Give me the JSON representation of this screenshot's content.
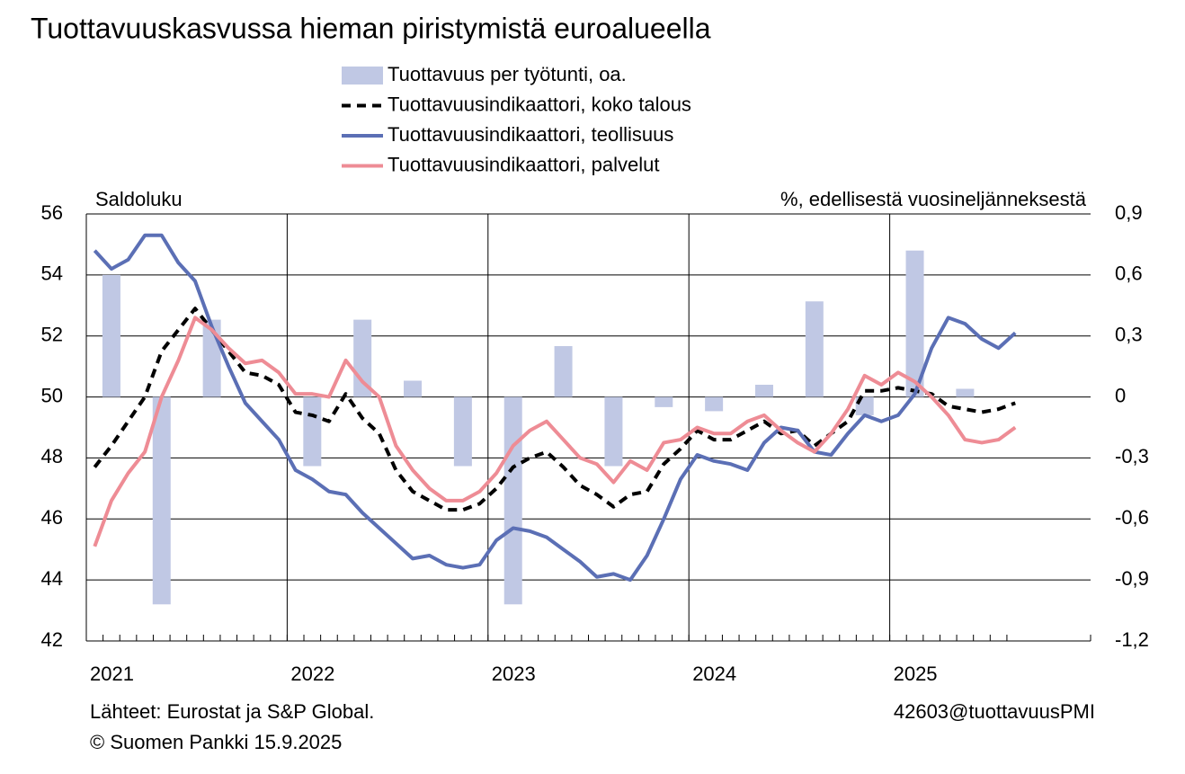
{
  "chart_data": {
    "type": "combo",
    "title": "Tuottavuuskasvussa hieman piristymistä euroalueella",
    "y_label": "Saldoluku",
    "y2_label": "%, edellisestä vuosineljänneksestä",
    "source": "Lähteet: Eurostat ja S&P Global.",
    "copyright": "© Suomen Pankki 15.9.2025",
    "chart_id": "42603@tuottavuusPMI",
    "legend": "top",
    "grid": true,
    "categories": [
      "2021",
      null,
      null,
      null,
      null,
      null,
      null,
      null,
      null,
      null,
      null,
      null,
      "2022",
      null,
      null,
      null,
      null,
      null,
      null,
      null,
      null,
      null,
      null,
      null,
      "2023",
      null,
      null,
      null,
      null,
      null,
      null,
      null,
      null,
      null,
      null,
      null,
      "2024",
      null,
      null,
      null,
      null,
      null,
      null,
      null,
      null,
      null,
      null,
      null,
      "2025",
      null,
      null,
      null,
      null,
      null,
      null,
      null
    ],
    "ylim": [
      42,
      56
    ],
    "yticks": [
      42,
      44,
      46,
      48,
      50,
      52,
      54,
      56
    ],
    "y2lim": [
      -1.2,
      0.9
    ],
    "y2ticks": [
      {
        "value": -1.2,
        "label": "-1,2"
      },
      {
        "value": -0.9,
        "label": "-0,9"
      },
      {
        "value": -0.6,
        "label": "-0,6"
      },
      {
        "value": -0.3,
        "label": "-0,3"
      },
      0,
      {
        "value": 0.3,
        "label": "0,3"
      },
      {
        "value": 0.6,
        "label": "0,6"
      },
      {
        "value": 0.9,
        "label": "0,9"
      }
    ],
    "series": [
      {
        "name": "Tuottavuus per työtunti, oa.",
        "type": "bar",
        "axis": "y2",
        "color": "#c0c8e4",
        "values": [
          null,
          0.6,
          null,
          null,
          -1.02,
          null,
          null,
          0.38,
          null,
          null,
          0,
          null,
          null,
          -0.34,
          null,
          null,
          0.38,
          null,
          null,
          0.08,
          null,
          null,
          -0.34,
          null,
          null,
          -1.02,
          null,
          null,
          0.25,
          null,
          null,
          -0.34,
          null,
          null,
          -0.05,
          null,
          null,
          -0.07,
          null,
          null,
          0.06,
          null,
          null,
          0.47,
          null,
          null,
          -0.09,
          null,
          null,
          0.72,
          null,
          null,
          0.04,
          null,
          null,
          null
        ]
      },
      {
        "name": "Tuottavuusindikaattori, koko talous",
        "type": "line",
        "dash": true,
        "color": "#000000",
        "values": [
          47.7,
          48.4,
          49.2,
          50.0,
          51.5,
          52.2,
          52.9,
          52.2,
          51.5,
          50.8,
          50.7,
          50.4,
          49.5,
          49.4,
          49.2,
          50.1,
          49.3,
          48.8,
          47.6,
          46.9,
          46.6,
          46.3,
          46.3,
          46.5,
          47.0,
          47.7,
          48.0,
          48.2,
          47.7,
          47.1,
          46.8,
          46.4,
          46.8,
          46.9,
          47.8,
          48.3,
          48.9,
          48.6,
          48.6,
          48.9,
          49.2,
          48.8,
          48.9,
          48.4,
          48.8,
          49.2,
          50.2,
          50.2,
          50.3,
          50.2,
          50.1,
          49.7,
          49.6,
          49.5,
          49.6,
          49.8
        ]
      },
      {
        "name": "Tuottavuusindikaattori, teollisuus",
        "type": "line",
        "color": "#5b6fb5",
        "values": [
          54.8,
          54.2,
          54.5,
          55.3,
          55.3,
          54.4,
          53.8,
          52.3,
          51.0,
          49.8,
          49.2,
          48.6,
          47.6,
          47.3,
          46.9,
          46.8,
          46.2,
          45.7,
          45.2,
          44.7,
          44.8,
          44.5,
          44.4,
          44.5,
          45.3,
          45.7,
          45.6,
          45.4,
          45.0,
          44.6,
          44.1,
          44.2,
          44.0,
          44.8,
          46.0,
          47.3,
          48.1,
          47.9,
          47.8,
          47.6,
          48.5,
          49.0,
          48.9,
          48.2,
          48.1,
          48.8,
          49.4,
          49.2,
          49.4,
          50.1,
          51.6,
          52.6,
          52.4,
          51.9,
          51.6,
          52.1
        ]
      },
      {
        "name": "Tuottavuusindikaattori, palvelut",
        "type": "line",
        "color": "#ee8c95",
        "values": [
          45.1,
          46.6,
          47.5,
          48.2,
          50.0,
          51.2,
          52.6,
          52.2,
          51.6,
          51.1,
          51.2,
          50.8,
          50.1,
          50.1,
          50.0,
          51.2,
          50.5,
          50.0,
          48.4,
          47.6,
          47.0,
          46.6,
          46.6,
          46.9,
          47.5,
          48.4,
          48.9,
          49.2,
          48.6,
          48.0,
          47.8,
          47.2,
          47.9,
          47.6,
          48.5,
          48.6,
          49.0,
          48.8,
          48.8,
          49.2,
          49.4,
          48.9,
          48.5,
          48.2,
          48.8,
          49.6,
          50.7,
          50.4,
          50.8,
          50.5,
          50.0,
          49.4,
          48.6,
          48.5,
          48.6,
          49.0
        ]
      }
    ]
  }
}
